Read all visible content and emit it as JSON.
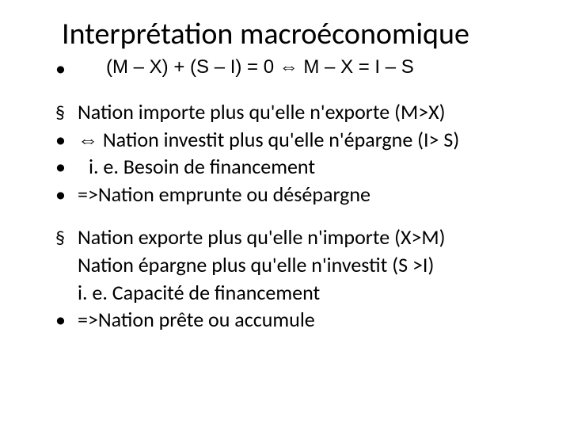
{
  "colors": {
    "background": "#ffffff",
    "text": "#000000"
  },
  "fonts": {
    "title_size_pt": 38,
    "body_size_pt": 26,
    "equation_size_pt": 24
  },
  "slide": {
    "title": "Interprétation macroéconomique",
    "equation": "(M – X)  + (S – I) = 0 ⇔ M – X = I – S",
    "block1": {
      "l1": "Nation importe plus qu'elle n'exporte (M>X)",
      "l2": "⇔ Nation investit plus qu'elle n'épargne  (I> S)",
      "l3": "i. e. Besoin de financement",
      "l4": "=>Nation emprunte ou désépargne"
    },
    "block2": {
      "l1": "Nation exporte plus qu'elle n'importe (X>M)",
      "l2": "Nation épargne plus qu'elle n'investit  (S >I)",
      "l3": "i. e. Capacité de financement",
      "l4": "=>Nation prête ou accumule"
    }
  }
}
